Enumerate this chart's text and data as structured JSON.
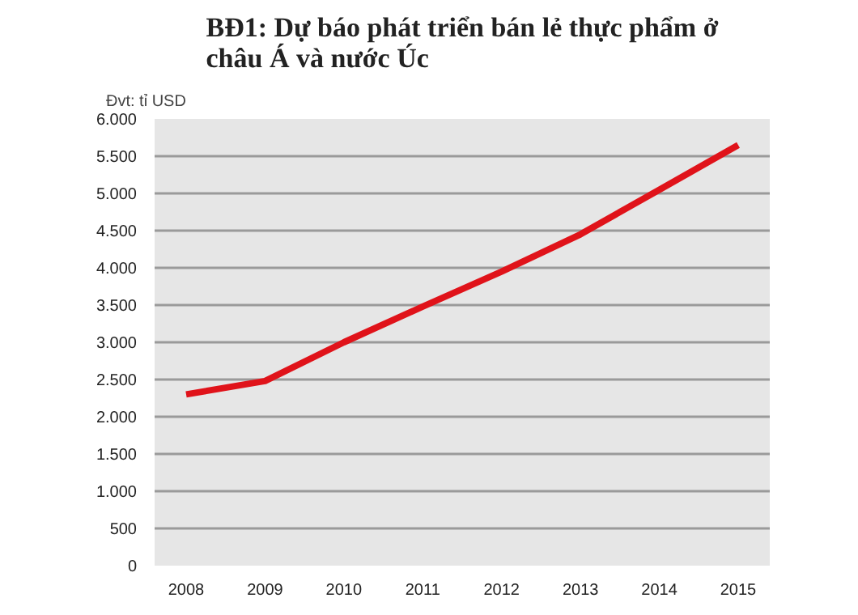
{
  "chart_data": {
    "type": "line",
    "title": "BĐ1: Dự báo phát triển bán lẻ thực phẩm ở châu Á và nước Úc",
    "ylabel": "Đvt: tỉ USD",
    "categories": [
      "2008",
      "2009",
      "2010",
      "2011",
      "2012",
      "2013",
      "2014",
      "2015"
    ],
    "series": [
      {
        "color": "#e0131a",
        "values": [
          2300,
          2480,
          3000,
          3480,
          3950,
          4450,
          5050,
          5650
        ]
      }
    ],
    "ylim": [
      0,
      6000
    ],
    "yticks": [
      0,
      500,
      {
        "value": 1000,
        "label": "1.000"
      },
      {
        "value": 1500,
        "label": "1.500"
      },
      {
        "value": 2000,
        "label": "2.000"
      },
      {
        "value": 2500,
        "label": "2.500"
      },
      {
        "value": 3000,
        "label": "3.000"
      },
      {
        "value": 3500,
        "label": "3.500"
      },
      {
        "value": 4000,
        "label": "4.000"
      },
      {
        "value": 4500,
        "label": "4.500"
      },
      {
        "value": 5000,
        "label": "5.000"
      },
      {
        "value": 5500,
        "label": "5.500"
      },
      {
        "value": 6000,
        "label": "6.000"
      }
    ],
    "grid": "y",
    "marker": "none",
    "line_style": "solid"
  }
}
